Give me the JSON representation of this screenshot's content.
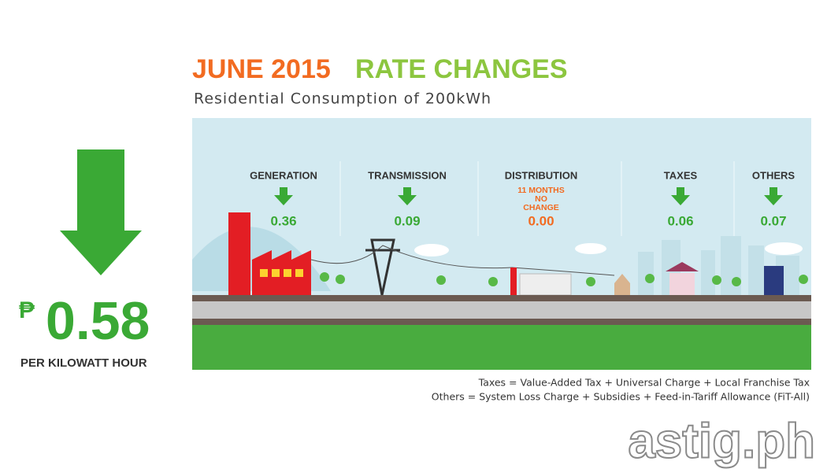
{
  "header": {
    "title_date": "JUNE 2015",
    "title_rest": "RATE CHANGES",
    "subtitle": "Residential Consumption of 200kWh"
  },
  "total": {
    "currency": "₱",
    "amount": "0.58",
    "unit": "PER KILOWATT HOUR"
  },
  "components": [
    {
      "label": "GENERATION",
      "value": "0.36"
    },
    {
      "label": "TRANSMISSION",
      "value": "0.09"
    },
    {
      "label": "DISTRIBUTION",
      "note": [
        "11 MONTHS",
        "NO",
        "CHANGE"
      ],
      "value": "0.00"
    },
    {
      "label": "TAXES",
      "value": "0.06"
    },
    {
      "label": "OTHERS",
      "value": "0.07"
    }
  ],
  "footnotes": [
    "Taxes = Value-Added Tax + Universal Charge + Local Franchise Tax",
    "Others = System Loss Charge + Subsidies + Feed-in-Tariff Allowance (FiT-All)"
  ],
  "watermark": "astig.ph"
}
